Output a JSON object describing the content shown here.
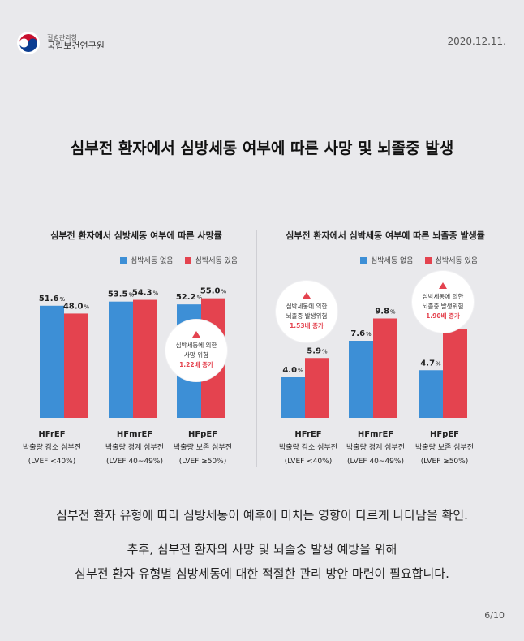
{
  "header": {
    "org_small": "질병관리청",
    "org_main": "국립보건연구원",
    "date": "2020.12.11."
  },
  "title": "심부전 환자에서 심방세동 여부에 따른 사망 및 뇌졸중 발생",
  "legend": {
    "no_af": "심박세동 없음",
    "af": "심박세동 있음"
  },
  "colors": {
    "no_af": "#3d8fd6",
    "af": "#e4434f"
  },
  "categories": [
    {
      "name": "HFrEF",
      "desc": "박출량 감소 심부전",
      "lvef": "(LVEF <40%)"
    },
    {
      "name": "HFmrEF",
      "desc": "박출량 경계 심부전",
      "lvef": "(LVEF 40~49%)"
    },
    {
      "name": "HFpEF",
      "desc": "박출량 보존 심부전",
      "lvef": "(LVEF ≥50%)"
    }
  ],
  "chart_data": [
    {
      "type": "bar",
      "title": "심부전 환자에서 심방세동 여부에 따른 사망률",
      "categories": [
        "HFrEF",
        "HFmrEF",
        "HFpEF"
      ],
      "series": [
        {
          "name": "심박세동 없음",
          "values": [
            51.6,
            53.5,
            52.2
          ],
          "color": "#3d8fd6"
        },
        {
          "name": "심박세동 있음",
          "values": [
            48.0,
            54.3,
            55.0
          ],
          "color": "#e4434f"
        }
      ],
      "ylim": [
        0,
        56
      ],
      "unit": "%",
      "annotation": {
        "lines": [
          "심박세동에 의한",
          "사망 위험"
        ],
        "highlight": "1.22배 증가",
        "category": "HFpEF"
      }
    },
    {
      "type": "bar",
      "title": "심부전 환자에서 심박세동 여부에 따른 뇌졸중 발생률",
      "categories": [
        "HFrEF",
        "HFmrEF",
        "HFpEF"
      ],
      "series": [
        {
          "name": "심박세동 없음",
          "values": [
            4.0,
            7.6,
            4.7
          ],
          "color": "#3d8fd6"
        },
        {
          "name": "심박세동 있음",
          "values": [
            5.9,
            9.8,
            8.8
          ],
          "color": "#e4434f"
        }
      ],
      "ylim": [
        0,
        10
      ],
      "unit": "%",
      "annotations": [
        {
          "lines": [
            "심박세동에 의한",
            "뇌졸중 발생위험"
          ],
          "highlight": "1.53배 증가",
          "category": "HFrEF"
        },
        {
          "lines": [
            "심박세동에 의한",
            "뇌졸중 발생위험"
          ],
          "highlight": "1.90배 증가",
          "category": "HFpEF"
        }
      ]
    }
  ],
  "summary": {
    "line1": "심부전 환자 유형에 따라 심방세동이 예후에 미치는 영향이 다르게 나타남을 확인.",
    "line2": "추후, 심부전 환자의 사망 및 뇌졸중 발생 예방을 위해",
    "line3": "심부전 환자 유형별 심방세동에 대한 적절한 관리 방안 마련이 필요합니다."
  },
  "page": "6/10"
}
